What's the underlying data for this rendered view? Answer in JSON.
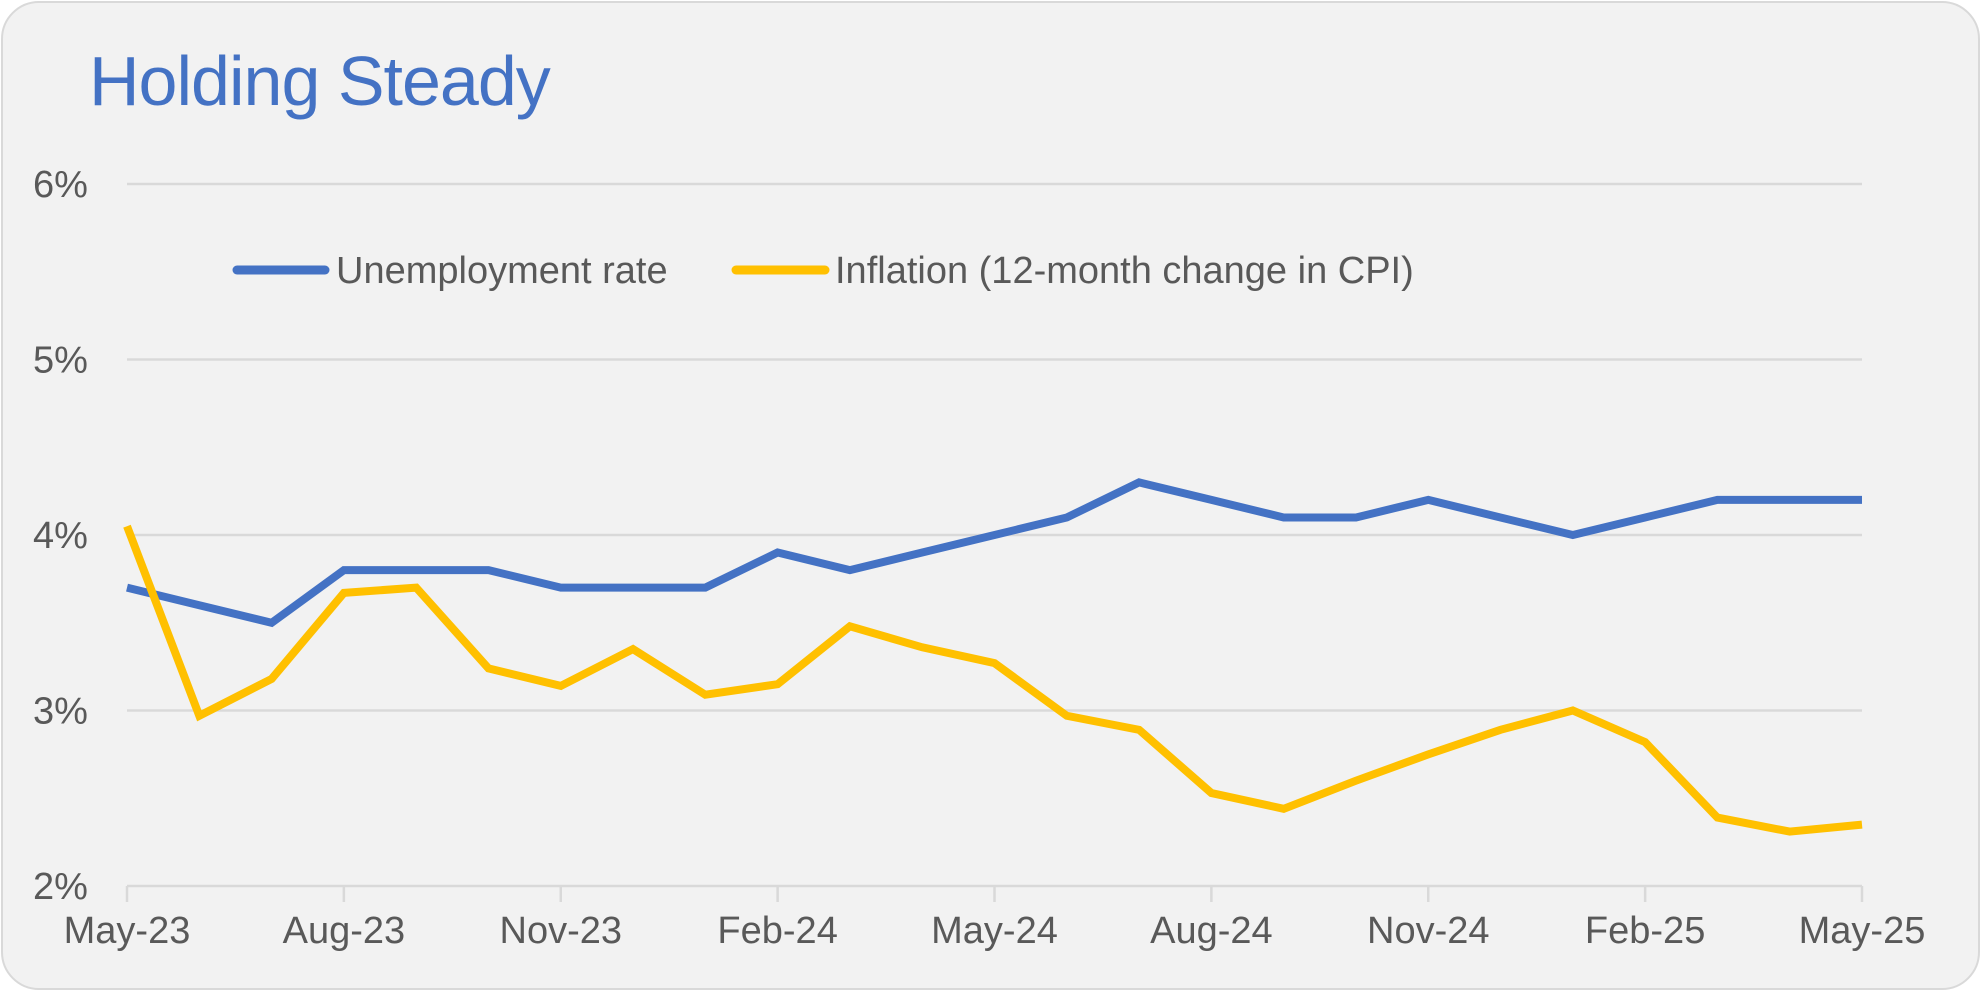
{
  "chart_data": {
    "type": "line",
    "title": "Holding Steady",
    "x": [
      "May-23",
      "Jun-23",
      "Jul-23",
      "Aug-23",
      "Sep-23",
      "Oct-23",
      "Nov-23",
      "Dec-23",
      "Jan-24",
      "Feb-24",
      "Mar-24",
      "Apr-24",
      "May-24",
      "Jun-24",
      "Jul-24",
      "Aug-24",
      "Sep-24",
      "Oct-24",
      "Nov-24",
      "Dec-24",
      "Jan-25",
      "Feb-25",
      "Mar-25",
      "Apr-25",
      "May-25"
    ],
    "x_tick_labels": [
      "May-23",
      "Aug-23",
      "Nov-23",
      "Feb-24",
      "May-24",
      "Aug-24",
      "Nov-24",
      "Feb-25",
      "May-25"
    ],
    "y_tick_labels": [
      "2%",
      "3%",
      "4%",
      "5%",
      "6%"
    ],
    "ylim": [
      2,
      6
    ],
    "y_ticks": [
      2,
      3,
      4,
      5,
      6
    ],
    "grid": true,
    "legend_position": "top",
    "series": [
      {
        "name": "Unemployment rate",
        "color": "#4472c4",
        "values": [
          3.7,
          3.6,
          3.5,
          3.8,
          3.8,
          3.8,
          3.7,
          3.7,
          3.7,
          3.9,
          3.8,
          3.9,
          4.0,
          4.1,
          4.3,
          4.2,
          4.1,
          4.1,
          4.2,
          4.1,
          4.0,
          4.1,
          4.2,
          4.2,
          4.2
        ]
      },
      {
        "name": "Inflation (12-month change in CPI)",
        "color": "#ffc000",
        "values": [
          4.05,
          2.97,
          3.18,
          3.67,
          3.7,
          3.24,
          3.14,
          3.35,
          3.09,
          3.15,
          3.48,
          3.36,
          3.27,
          2.97,
          2.89,
          2.53,
          2.44,
          2.6,
          2.75,
          2.89,
          3.0,
          2.82,
          2.39,
          2.31,
          2.35
        ]
      }
    ]
  }
}
